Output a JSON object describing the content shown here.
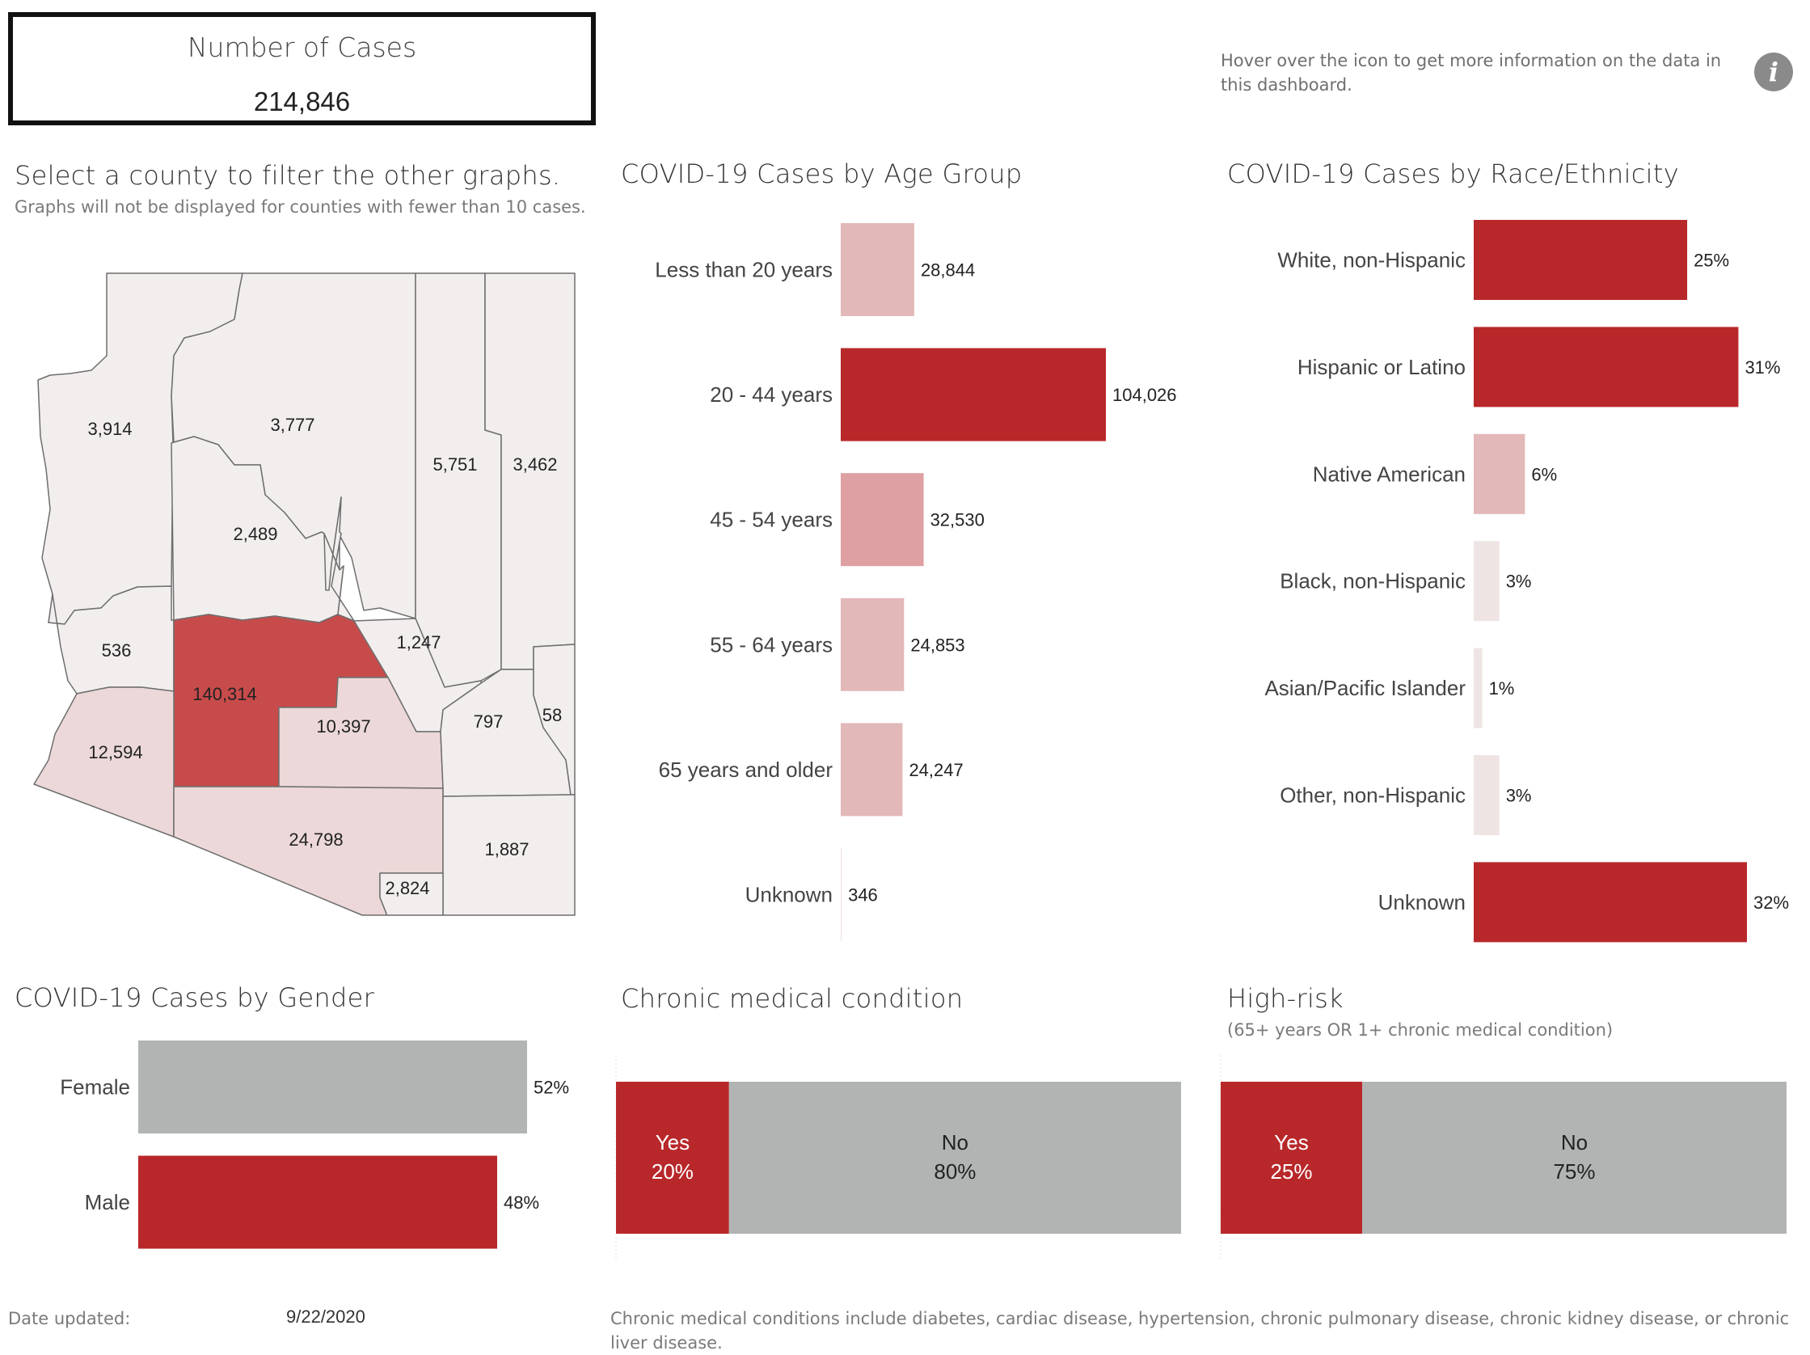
{
  "header": {
    "number_of_cases_label": "Number of Cases",
    "number_of_cases_value": "214,846",
    "info_text": "Hover over the icon to get more information on the data in this dashboard.",
    "info_icon": "info-icon"
  },
  "map": {
    "title": "Select a county to filter the other graphs.",
    "subtitle": "Graphs will not be displayed for counties with fewer than 10 cases.",
    "counties": [
      {
        "name": "mohave",
        "label": "3,914",
        "value": 3914
      },
      {
        "name": "coconino",
        "label": "3,777",
        "value": 3777
      },
      {
        "name": "navajo",
        "label": "5,751",
        "value": 5751
      },
      {
        "name": "apache",
        "label": "3,462",
        "value": 3462
      },
      {
        "name": "yavapai",
        "label": "2,489",
        "value": 2489
      },
      {
        "name": "la-paz",
        "label": "536",
        "value": 536
      },
      {
        "name": "maricopa",
        "label": "140,314",
        "value": 140314
      },
      {
        "name": "gila",
        "label": "1,247",
        "value": 1247
      },
      {
        "name": "yuma",
        "label": "12,594",
        "value": 12594
      },
      {
        "name": "pinal",
        "label": "10,397",
        "value": 10397
      },
      {
        "name": "graham",
        "label": "797",
        "value": 797
      },
      {
        "name": "greenlee",
        "label": "58",
        "value": 58
      },
      {
        "name": "pima",
        "label": "24,798",
        "value": 24798
      },
      {
        "name": "cochise",
        "label": "1,887",
        "value": 1887
      },
      {
        "name": "santa-cruz",
        "label": "2,824",
        "value": 2824
      }
    ]
  },
  "colors": {
    "dark_red": "#b8282a",
    "map_red": "#c84b4b",
    "pink_mid": "#dea0a2",
    "pink_light": "#e3b8b9",
    "pink_pale": "#ecd8d8",
    "pink_faint": "#efe4e4",
    "county_base": "#f3eeee",
    "gray": "#b2b4b4",
    "county_stroke": "#6e6e6e"
  },
  "chart_data": [
    {
      "type": "bar",
      "title": "COVID-19 Cases by Age Group",
      "categories": [
        "Less than 20 years",
        "20 -  44 years",
        "45 - 54 years",
        "55 - 64 years",
        "65 years and older",
        "Unknown"
      ],
      "values": [
        28844,
        104026,
        32530,
        24853,
        24247,
        346
      ],
      "labels": [
        "28,844",
        "104,026",
        "32,530",
        "24,853",
        "24,247",
        "346"
      ],
      "orientation": "horizontal"
    },
    {
      "type": "bar",
      "title": "COVID-19 Cases by Race/Ethnicity",
      "categories": [
        "White, non-Hispanic",
        "Hispanic or Latino",
        "Native American",
        "Black, non-Hispanic",
        "Asian/Pacific Islander",
        "Other, non-Hispanic",
        "Unknown"
      ],
      "values": [
        25,
        31,
        6,
        3,
        1,
        3,
        32
      ],
      "labels": [
        "25%",
        "31%",
        "6%",
        "3%",
        "1%",
        "3%",
        "32%"
      ],
      "orientation": "horizontal"
    },
    {
      "type": "bar",
      "title": "COVID-19 Cases by Gender",
      "categories": [
        "Female",
        "Male"
      ],
      "values": [
        52,
        48
      ],
      "labels": [
        "52%",
        "48%"
      ],
      "orientation": "horizontal"
    },
    {
      "type": "bar",
      "stacked": true,
      "title": "Chronic medical condition",
      "categories": [
        "Yes",
        "No"
      ],
      "values": [
        20,
        80
      ],
      "labels": [
        "20%",
        "80%"
      ]
    },
    {
      "type": "bar",
      "stacked": true,
      "title": "High-risk",
      "subtitle": "(65+ years OR 1+ chronic medical condition)",
      "categories": [
        "Yes",
        "No"
      ],
      "values": [
        25,
        75
      ],
      "labels": [
        "25%",
        "75%"
      ]
    }
  ],
  "footer": {
    "date_label": "Date updated:",
    "date_value": "9/22/2020",
    "chronic_note": "Chronic medical conditions include diabetes, cardiac disease, hypertension, chronic pulmonary disease, chronic kidney disease, or chronic liver disease."
  }
}
